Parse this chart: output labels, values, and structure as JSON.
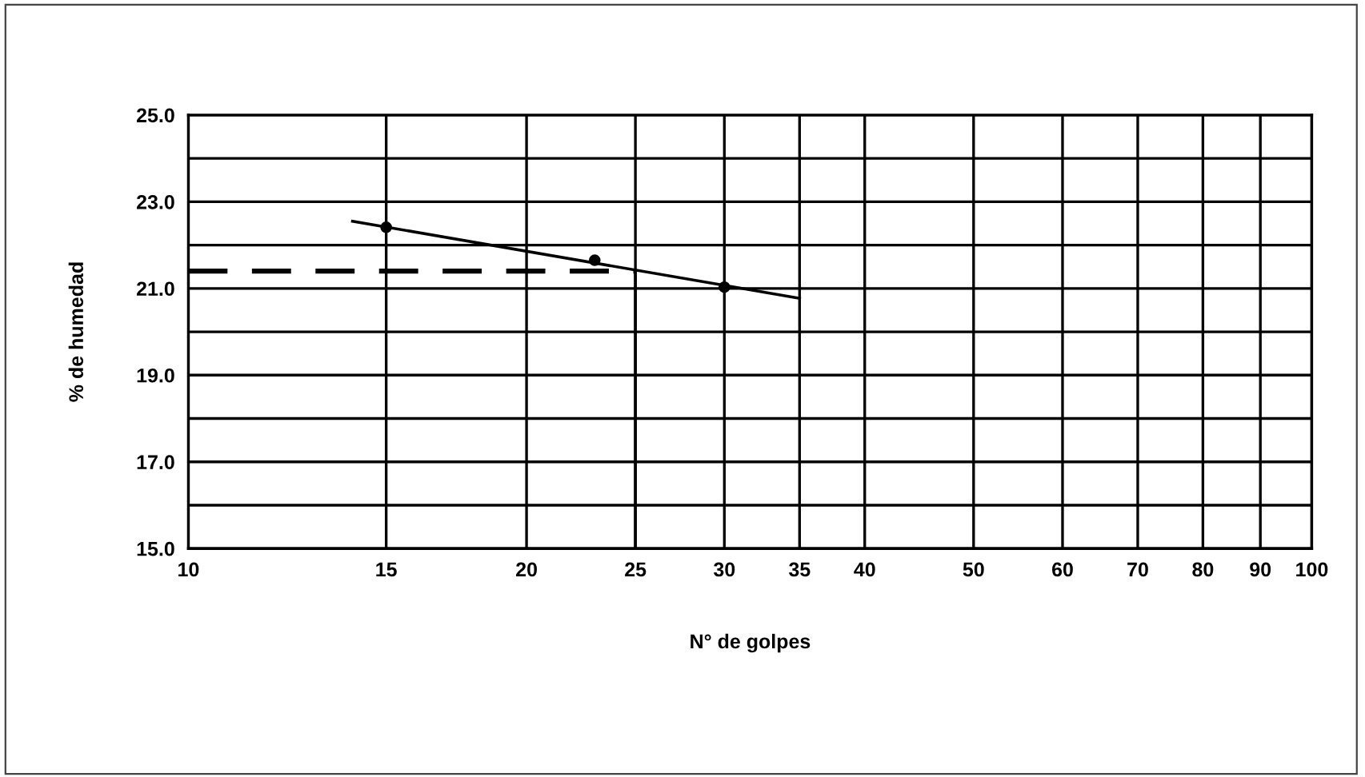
{
  "chart_data": {
    "type": "scatter",
    "xlabel": "N° de golpes",
    "ylabel": "% de humedad",
    "log": "x",
    "xlim": [
      10,
      100
    ],
    "ylim": [
      15,
      25
    ],
    "xticks": [
      10,
      15,
      20,
      25,
      30,
      35,
      40,
      50,
      60,
      70,
      80,
      90,
      100
    ],
    "yticks": [
      {
        "value": 15,
        "label": "15.0"
      },
      {
        "value": 16,
        "label": null
      },
      {
        "value": 17,
        "label": "17.0"
      },
      {
        "value": 18,
        "label": null
      },
      {
        "value": 19,
        "label": "19.0"
      },
      {
        "value": 20,
        "label": null
      },
      {
        "value": 21,
        "label": "21.0"
      },
      {
        "value": 22,
        "label": null
      },
      {
        "value": 23,
        "label": "23.0"
      },
      {
        "value": 24,
        "label": null
      },
      {
        "value": 25,
        "label": "25.0"
      }
    ],
    "grid": true,
    "series": [
      {
        "color": "#000000",
        "marker": "circle",
        "x": [
          15,
          23,
          30
        ],
        "values": [
          22.41,
          21.65,
          21.03
        ]
      },
      {
        "type": "line",
        "color": "#000000",
        "line_style": "solid",
        "x": [
          14,
          35
        ],
        "values": [
          22.55,
          20.77
        ]
      },
      {
        "type": "line",
        "color": "#000000",
        "line_style": "dashed",
        "x": [
          10,
          25
        ],
        "values": [
          21.4,
          21.4
        ]
      },
      {
        "type": "line",
        "color": "#000000",
        "line_style": "solid",
        "x": [
          25,
          25
        ],
        "values": [
          21.4,
          15
        ]
      }
    ]
  }
}
